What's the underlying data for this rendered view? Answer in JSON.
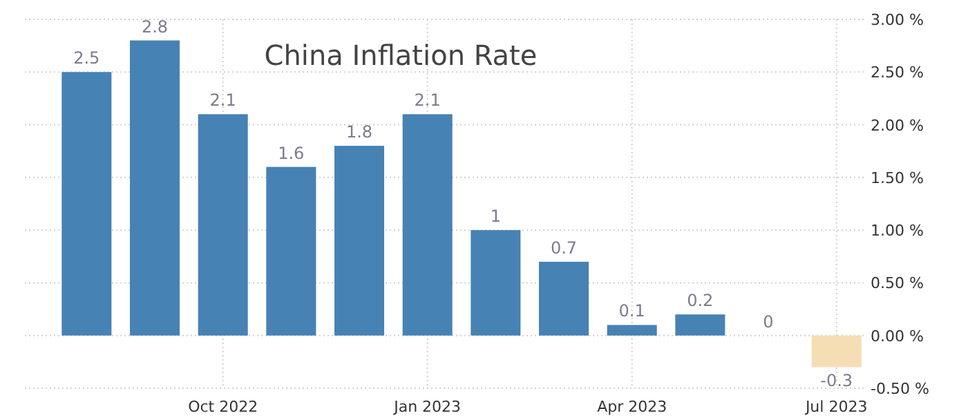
{
  "chart_data": {
    "type": "bar",
    "title": "China Inflation Rate",
    "categories": [
      null,
      null,
      "Oct 2022",
      null,
      null,
      "Jan 2023",
      null,
      null,
      "Apr 2023",
      null,
      null,
      "Jul 2023"
    ],
    "values": [
      2.5,
      2.8,
      2.1,
      1.6,
      1.8,
      2.1,
      1,
      0.7,
      0.1,
      0.2,
      0,
      -0.3
    ],
    "colors": [
      "#4682b4",
      "#4682b4",
      "#4682b4",
      "#4682b4",
      "#4682b4",
      "#4682b4",
      "#4682b4",
      "#4682b4",
      "#4682b4",
      "#4682b4",
      "#4682b4",
      "#f5deb3"
    ],
    "ylim": [
      -0.5,
      3
    ],
    "yticks": [
      {
        "value": 3,
        "label": "3.00 %"
      },
      {
        "value": 2.5,
        "label": "2.50 %"
      },
      {
        "value": 2,
        "label": "2.00 %"
      },
      {
        "value": 1.5,
        "label": "1.50 %"
      },
      {
        "value": 1,
        "label": "1.00 %"
      },
      {
        "value": 0.5,
        "label": "0.50 %"
      },
      {
        "value": 0,
        "label": "0.00 %"
      },
      {
        "value": -0.5,
        "label": "-0.50 %"
      }
    ],
    "grid": true,
    "data_labels": true
  }
}
